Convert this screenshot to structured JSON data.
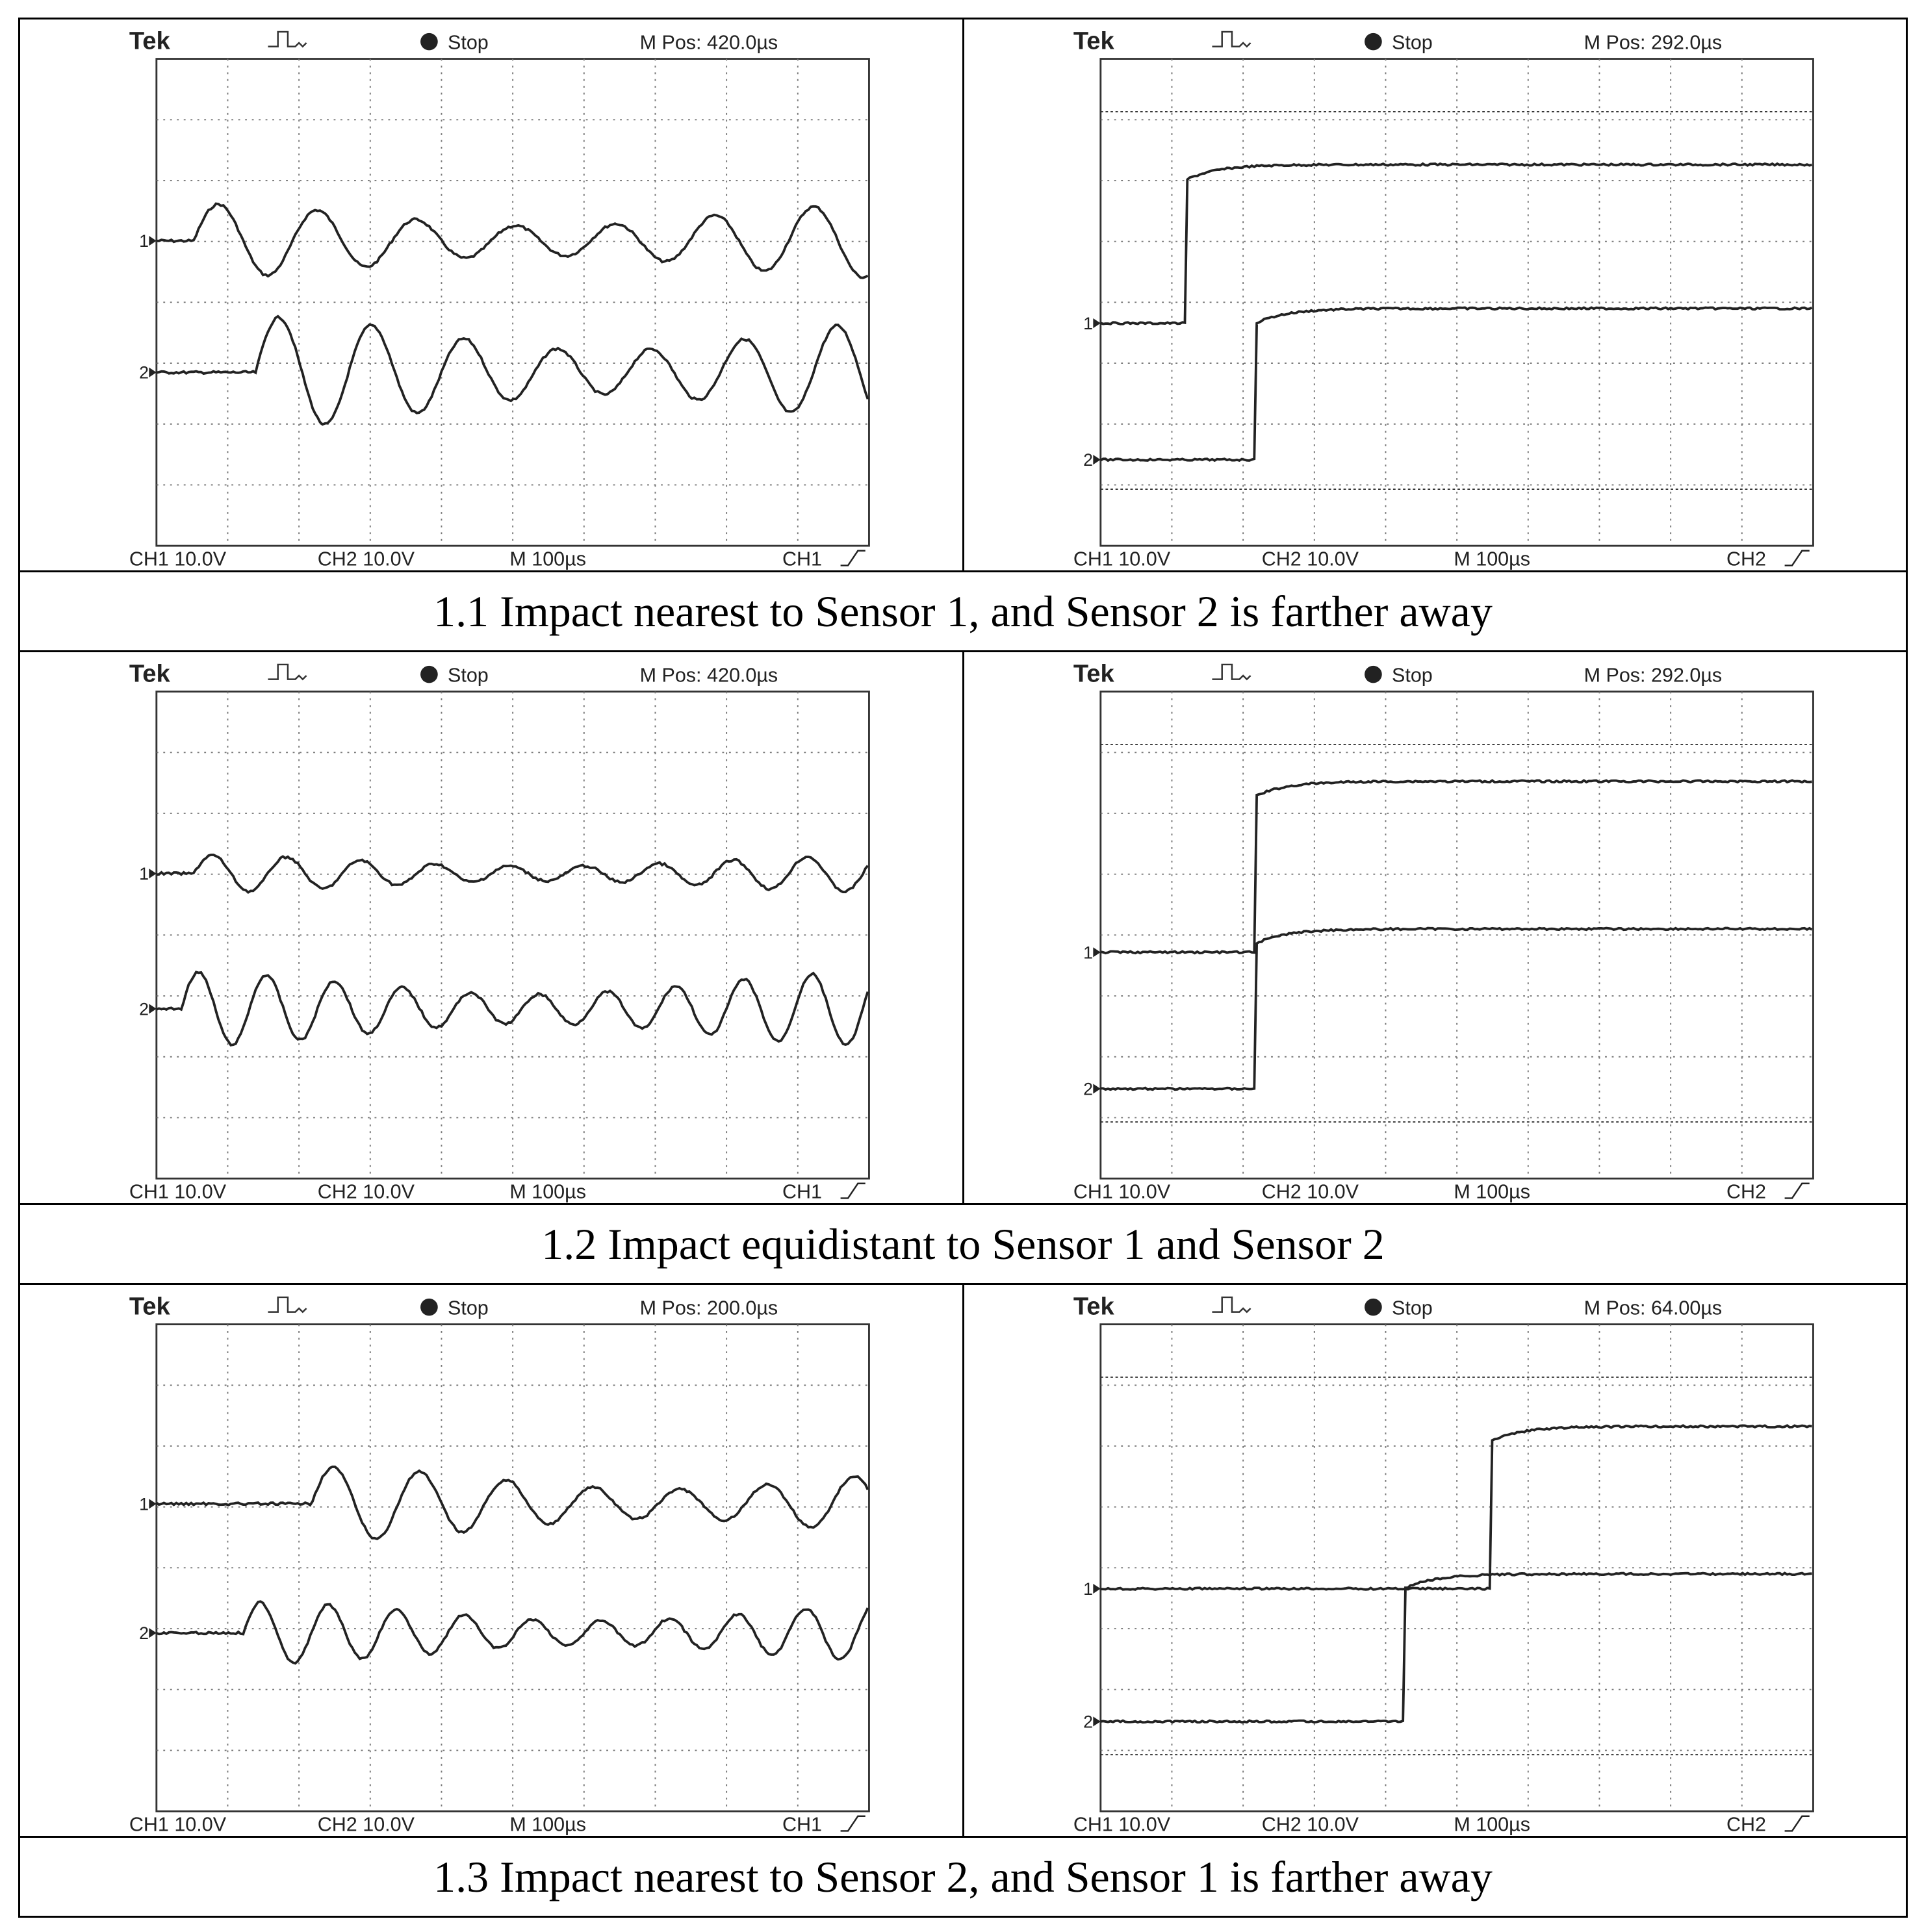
{
  "rows": [
    {
      "panels": [
        {
          "header": {
            "brand": "Tek",
            "status": "Stop",
            "position": "M Pos: 420.0µs"
          },
          "channels": [
            "1",
            "2"
          ],
          "footer": {
            "ch1": "CH1 10.0V",
            "ch2": "CH2 10.0V",
            "time": "M 100µs",
            "trigger": "CH1"
          }
        },
        {
          "header": {
            "brand": "Tek",
            "status": "Stop",
            "position": "M Pos: 292.0µs"
          },
          "channels": [
            "1",
            "2"
          ],
          "footer": {
            "ch1": "CH1 10.0V",
            "ch2": "CH2 10.0V",
            "time": "M 100µs",
            "trigger": "CH2"
          }
        }
      ],
      "caption": "1.1 Impact nearest to Sensor 1, and Sensor 2 is farther away"
    },
    {
      "panels": [
        {
          "header": {
            "brand": "Tek",
            "status": "Stop",
            "position": "M Pos: 420.0µs"
          },
          "channels": [
            "1",
            "2"
          ],
          "footer": {
            "ch1": "CH1 10.0V",
            "ch2": "CH2 10.0V",
            "time": "M 100µs",
            "trigger": "CH1"
          }
        },
        {
          "header": {
            "brand": "Tek",
            "status": "Stop",
            "position": "M Pos: 292.0µs"
          },
          "channels": [
            "1",
            "2"
          ],
          "footer": {
            "ch1": "CH1 10.0V",
            "ch2": "CH2 10.0V",
            "time": "M 100µs",
            "trigger": "CH2"
          }
        }
      ],
      "caption": "1.2 Impact equidistant to Sensor 1 and Sensor 2"
    },
    {
      "panels": [
        {
          "header": {
            "brand": "Tek",
            "status": "Stop",
            "position": "M Pos: 200.0µs"
          },
          "channels": [
            "1",
            "2"
          ],
          "footer": {
            "ch1": "CH1 10.0V",
            "ch2": "CH2 10.0V",
            "time": "M 100µs",
            "trigger": "CH1"
          }
        },
        {
          "header": {
            "brand": "Tek",
            "status": "Stop",
            "position": "M Pos: 64.00µs"
          },
          "channels": [
            "1",
            "2"
          ],
          "footer": {
            "ch1": "CH1 10.0V",
            "ch2": "CH2 10.0V",
            "time": "M 100µs",
            "trigger": "CH2"
          }
        }
      ],
      "caption": "1.3 Impact nearest to Sensor 2, and Sensor 1 is farther away"
    }
  ]
}
